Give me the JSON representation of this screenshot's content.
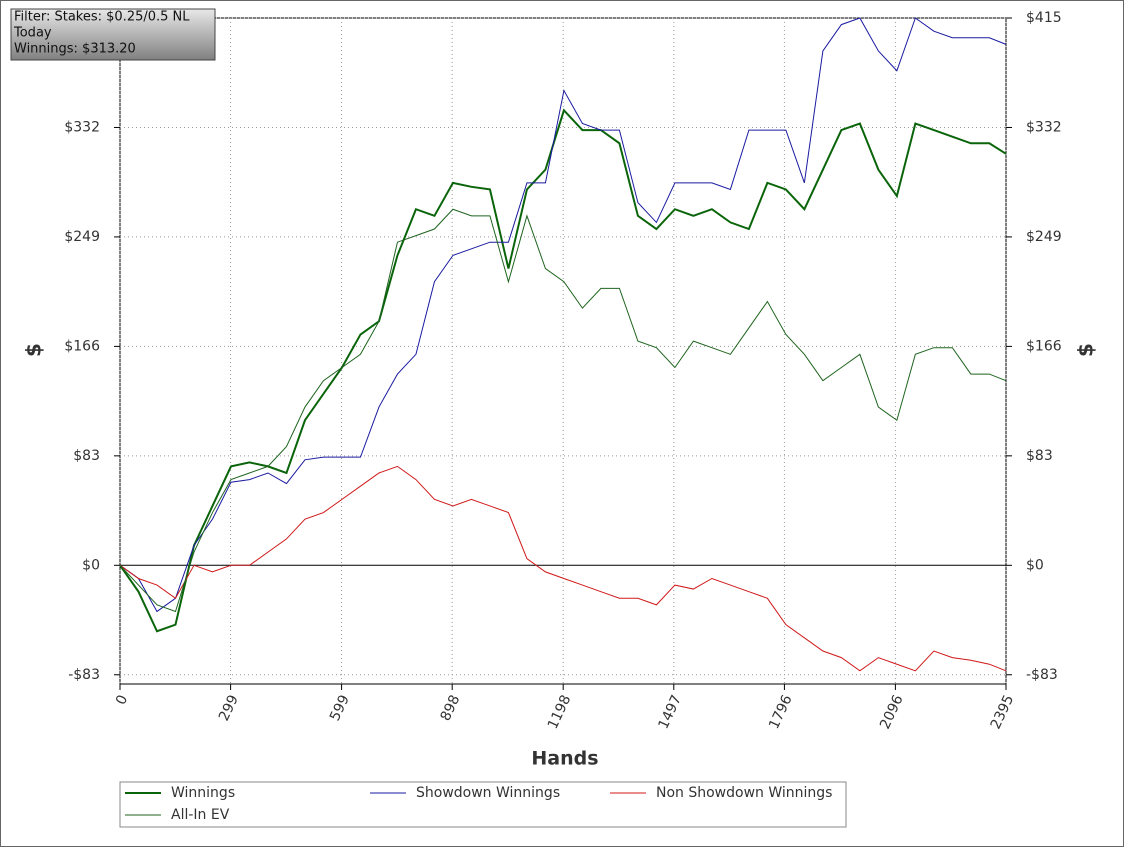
{
  "chart_data": {
    "type": "line",
    "annotations": [
      "Filter: Stakes: $0.25/0.5 NL",
      "Today",
      "Winnings: $313.20"
    ],
    "xlabel": "Hands",
    "ylabel": "$",
    "xlim": [
      0,
      2395
    ],
    "ylim": [
      -90,
      415
    ],
    "xticks": [
      0,
      299,
      599,
      898,
      1198,
      1497,
      1796,
      2096,
      2395
    ],
    "yticks": [
      {
        "value": -83,
        "label": "-$83"
      },
      {
        "value": 0,
        "label": "$0"
      },
      {
        "value": 83,
        "label": "$83"
      },
      {
        "value": 166,
        "label": "$166"
      },
      {
        "value": 249,
        "label": "$249"
      },
      {
        "value": 332,
        "label": "$332"
      },
      {
        "value": 415,
        "label": "$415"
      }
    ],
    "grid": true,
    "x": [
      0,
      50,
      100,
      150,
      200,
      250,
      300,
      350,
      400,
      450,
      500,
      550,
      600,
      650,
      700,
      750,
      800,
      850,
      900,
      950,
      1000,
      1050,
      1100,
      1150,
      1200,
      1250,
      1300,
      1350,
      1400,
      1450,
      1500,
      1550,
      1600,
      1650,
      1700,
      1750,
      1800,
      1850,
      1900,
      1950,
      2000,
      2050,
      2100,
      2150,
      2200,
      2250,
      2300,
      2350,
      2395
    ],
    "series": [
      {
        "name": "Winnings",
        "color": "#0a640a",
        "values": [
          0,
          -20,
          -50,
          -45,
          15,
          45,
          75,
          78,
          75,
          70,
          110,
          130,
          150,
          175,
          185,
          235,
          270,
          265,
          290,
          287,
          285,
          225,
          285,
          300,
          345,
          330,
          330,
          320,
          265,
          255,
          270,
          265,
          270,
          260,
          255,
          290,
          285,
          270,
          300,
          330,
          335,
          300,
          280,
          335,
          330,
          325,
          320,
          320,
          312
        ]
      },
      {
        "name": "Showdown Winnings",
        "color": "#1a1aa0",
        "values": [
          0,
          -10,
          -35,
          -25,
          15,
          35,
          63,
          65,
          70,
          62,
          80,
          82,
          82,
          82,
          120,
          145,
          160,
          215,
          235,
          240,
          245,
          245,
          290,
          290,
          360,
          335,
          330,
          330,
          275,
          260,
          290,
          290,
          290,
          285,
          330,
          330,
          330,
          290,
          390,
          410,
          415,
          390,
          375,
          415,
          405,
          400,
          400,
          400,
          395
        ]
      },
      {
        "name": "Non Showdown Winnings",
        "color": "#d01818",
        "values": [
          0,
          -10,
          -15,
          -25,
          0,
          -5,
          0,
          0,
          10,
          20,
          35,
          40,
          50,
          60,
          70,
          75,
          65,
          50,
          45,
          50,
          45,
          40,
          5,
          -5,
          -10,
          -15,
          -20,
          -25,
          -25,
          -30,
          -15,
          -18,
          -10,
          -15,
          -20,
          -25,
          -45,
          -55,
          -65,
          -70,
          -80,
          -70,
          -75,
          -80,
          -65,
          -70,
          -72,
          -75,
          -80
        ]
      },
      {
        "name": "All-In EV",
        "color": "#1e641e",
        "values": [
          0,
          -15,
          -30,
          -35,
          10,
          40,
          65,
          70,
          75,
          90,
          120,
          140,
          150,
          160,
          185,
          245,
          250,
          255,
          270,
          265,
          265,
          215,
          265,
          225,
          215,
          195,
          210,
          210,
          170,
          165,
          150,
          170,
          165,
          160,
          180,
          200,
          175,
          160,
          140,
          150,
          160,
          120,
          110,
          160,
          165,
          165,
          145,
          145,
          140
        ]
      }
    ]
  }
}
